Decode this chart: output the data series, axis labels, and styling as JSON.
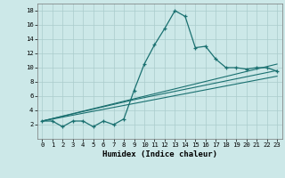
{
  "title": "",
  "xlabel": "Humidex (Indice chaleur)",
  "bg_color": "#cce8e8",
  "grid_color": "#aacccc",
  "line_color": "#1a7070",
  "xlim": [
    -0.5,
    23.5
  ],
  "ylim": [
    0,
    19
  ],
  "yticks": [
    2,
    4,
    6,
    8,
    10,
    12,
    14,
    16,
    18
  ],
  "xticks": [
    0,
    1,
    2,
    3,
    4,
    5,
    6,
    7,
    8,
    9,
    10,
    11,
    12,
    13,
    14,
    15,
    16,
    17,
    18,
    19,
    20,
    21,
    22,
    23
  ],
  "line1_x": [
    0,
    1,
    2,
    3,
    4,
    5,
    6,
    7,
    8,
    9,
    10,
    11,
    12,
    13,
    14,
    15,
    16,
    17,
    18,
    19,
    20,
    21,
    22,
    23
  ],
  "line1_y": [
    2.5,
    2.5,
    1.7,
    2.5,
    2.5,
    1.7,
    2.5,
    2.0,
    2.8,
    6.8,
    10.5,
    13.2,
    15.5,
    18.0,
    17.2,
    12.8,
    13.0,
    11.2,
    10.0,
    10.0,
    9.8,
    10.0,
    10.0,
    9.5
  ],
  "line2_x": [
    0,
    23
  ],
  "line2_y": [
    2.5,
    10.5
  ],
  "line3_x": [
    0,
    23
  ],
  "line3_y": [
    2.5,
    8.8
  ],
  "line4_x": [
    0,
    9,
    23
  ],
  "line4_y": [
    2.5,
    5.5,
    9.6
  ]
}
